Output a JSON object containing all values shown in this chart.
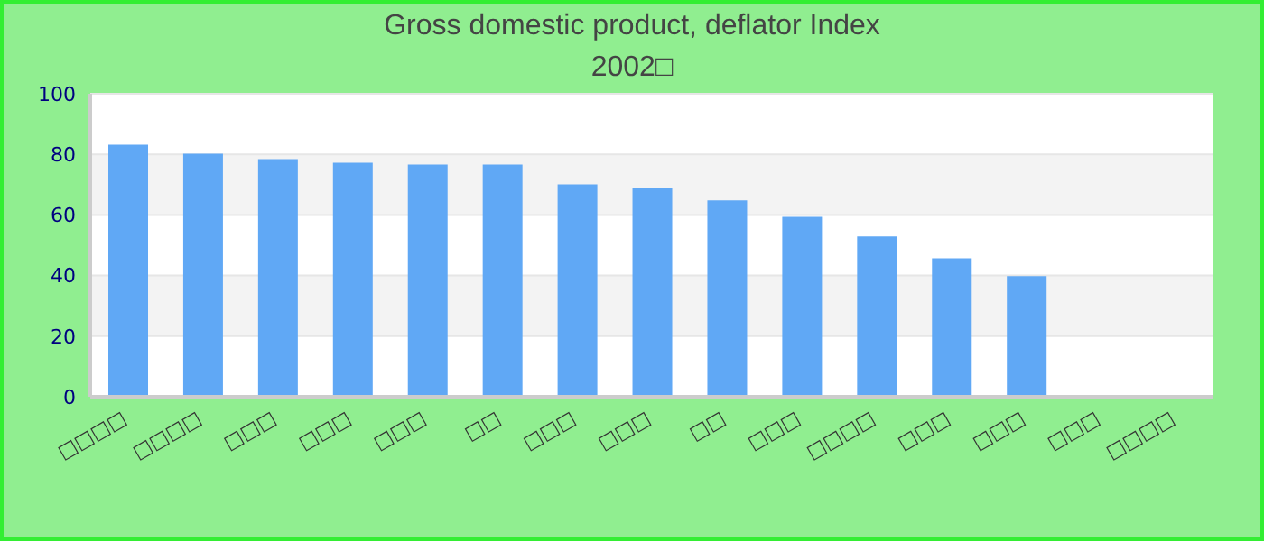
{
  "chart_data": {
    "type": "bar",
    "title": "Gross domestic product, deflator  Index",
    "subtitle": "2002□",
    "categories": [
      "□□□□",
      "□□□□",
      "□□□",
      "□□□",
      "□□□",
      "□□",
      "□□□",
      "□□□",
      "□□",
      "□□□",
      "□□□□",
      "□□□",
      "□□□",
      "□□□",
      "□□□□"
    ],
    "values": [
      83.2,
      80.2,
      78.4,
      77.2,
      76.6,
      76.6,
      70.1,
      68.9,
      64.8,
      59.4,
      52.9,
      45.7,
      39.8,
      null,
      null
    ],
    "color": "#60a8f5",
    "ylim": [
      0,
      100
    ],
    "yticks": [
      0,
      20,
      40,
      60,
      80,
      100
    ],
    "grid": "y"
  }
}
